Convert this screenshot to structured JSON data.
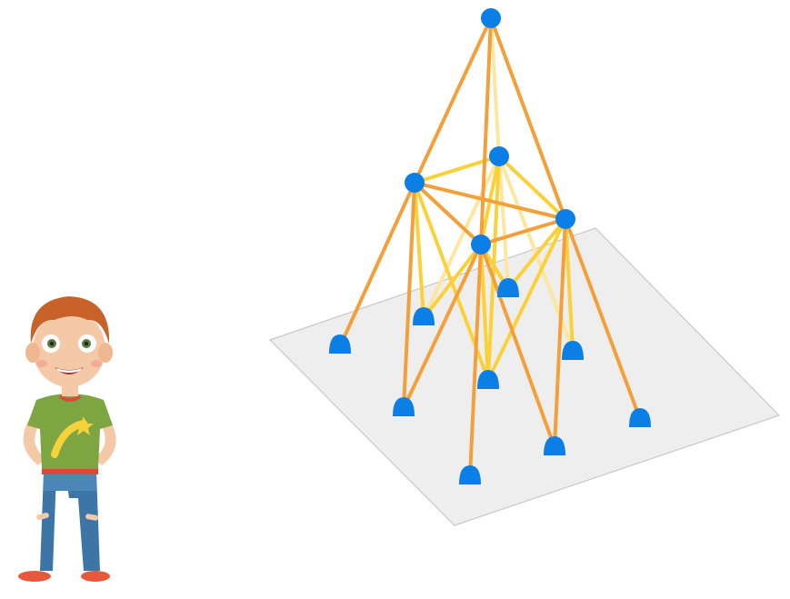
{
  "scene": {
    "description_visible_text": "",
    "colors": {
      "ground_fill": "#eeeeee",
      "ground_stroke": "#c8c8c8",
      "node": "#0b7fe6",
      "stick_orange": "#f4a03a",
      "stick_yellow": "#fbd13a",
      "stick_pale": "#fde7a0"
    },
    "icons": [
      "boy-character",
      "ball-node",
      "base-pad"
    ]
  }
}
